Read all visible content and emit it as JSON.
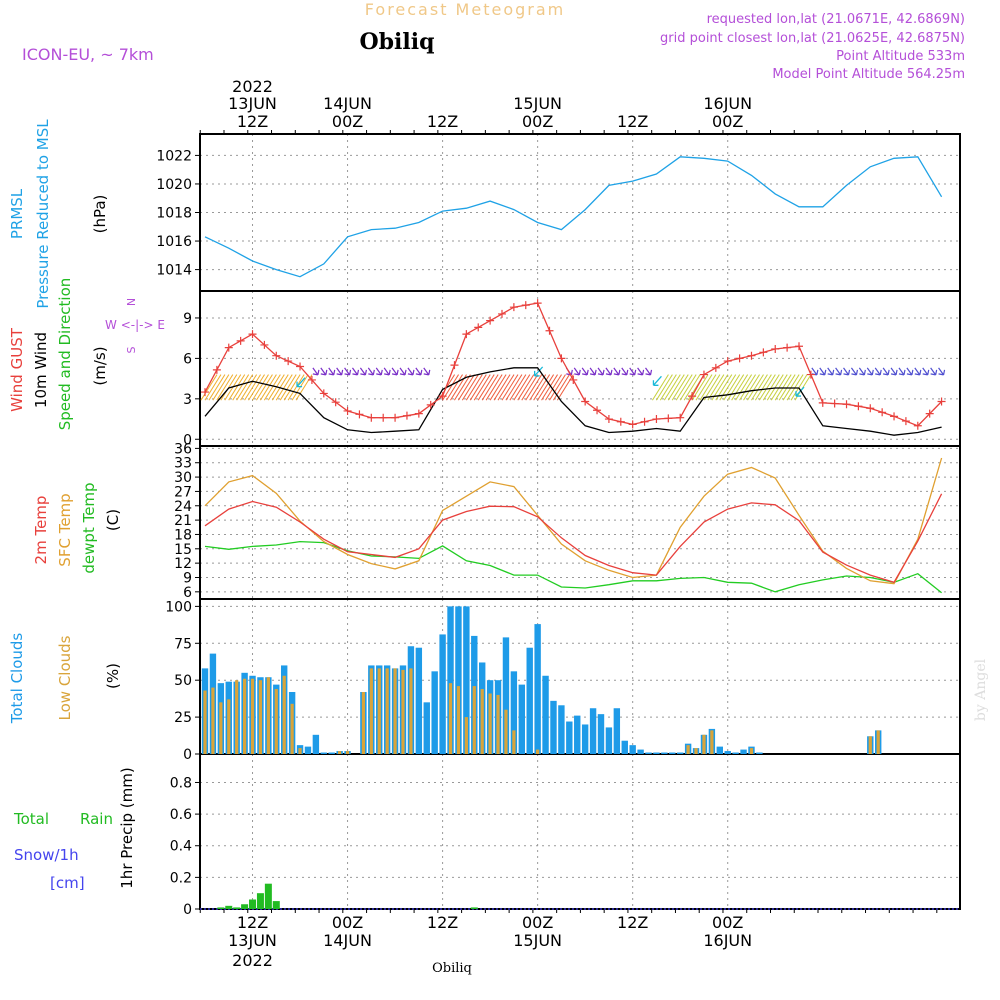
{
  "header": {
    "model": "ICON-EU, ~ 7km",
    "super_title": "Forecast Meteogram",
    "location": "Obiliq",
    "requested": "requested lon,lat (21.0671E, 42.6869N)",
    "grid_point": "grid point closest lon,lat (21.0625E, 42.6875N)",
    "point_altitude": "Point Altitude 533m",
    "model_altitude": "Model Point Altitude 564.25m",
    "watermark": "by Angel",
    "footer_location": "Obiliq"
  },
  "time_axis": {
    "top": [
      {
        "line1": "2022",
        "line2": "13JUN",
        "line3": "12Z"
      },
      {
        "line1": "",
        "line2": "14JUN",
        "line3": "00Z"
      },
      {
        "line1": "",
        "line2": "",
        "line3": "12Z"
      },
      {
        "line1": "",
        "line2": "15JUN",
        "line3": "00Z"
      },
      {
        "line1": "",
        "line2": "",
        "line3": "12Z"
      },
      {
        "line1": "",
        "line2": "16JUN",
        "line3": "00Z"
      }
    ],
    "bottom": [
      {
        "line1": "12Z",
        "line2": "13JUN",
        "line3": "2022"
      },
      {
        "line1": "00Z",
        "line2": "14JUN",
        "line3": ""
      },
      {
        "line1": "12Z",
        "line2": "",
        "line3": ""
      },
      {
        "line1": "00Z",
        "line2": "15JUN",
        "line3": ""
      },
      {
        "line1": "12Z",
        "line2": "",
        "line3": ""
      },
      {
        "line1": "00Z",
        "line2": "16JUN",
        "line3": ""
      }
    ]
  },
  "colors": {
    "pressure": "#1fa2e6",
    "gust": "#e8403c",
    "wind": "#000000",
    "t2m": "#e8403c",
    "sfc": "#e0a030",
    "dew": "#22cc22",
    "total_cloud": "#1e9be8",
    "low_cloud": "#d9a43a",
    "rain": "#22bb22",
    "snow": "#4444ee",
    "purple": "#b44fd8",
    "title_orange": "#f0c888"
  },
  "panels": {
    "pressure": {
      "label1": "PRMSL",
      "label2": "Pressure Reduced to MSL",
      "unit": "(hPa)"
    },
    "wind": {
      "label1": "Wind GUST",
      "label2": "10m Wind",
      "label3": "Speed and Direction",
      "unit": "(m/s)",
      "compass_n": "N",
      "compass_s": "S",
      "compass_we": "W <-|-> E"
    },
    "temp": {
      "label1": "2m Temp",
      "label2": "SFC Temp",
      "label3": "dewpt Temp",
      "unit": "(C)"
    },
    "cloud": {
      "label1": "Total Clouds",
      "label2": "Low Clouds",
      "unit": "(%)"
    },
    "precip": {
      "label1": "Total",
      "label1b": "Rain",
      "label2": "Snow/1h",
      "label3": "[cm]",
      "unit": "1hr Precip (mm)"
    }
  },
  "chart_data": [
    {
      "type": "line",
      "title": "PRMSL Pressure Reduced to MSL",
      "ylabel": "(hPa)",
      "ylim": [
        1012.5,
        1023.5
      ],
      "yticks": [
        1014,
        1016,
        1018,
        1020,
        1022
      ],
      "x_hours": [
        0,
        3,
        6,
        9,
        12,
        15,
        18,
        21,
        24,
        27,
        30,
        33,
        36,
        39,
        42,
        45,
        48,
        51,
        54,
        57,
        60,
        63,
        66,
        69,
        72,
        75,
        78,
        81,
        84,
        87,
        90,
        93
      ],
      "series": [
        {
          "name": "PRMSL",
          "values": [
            1016.3,
            1015.5,
            1014.6,
            1014.0,
            1013.5,
            1014.4,
            1016.3,
            1016.8,
            1016.9,
            1017.3,
            1018.1,
            1018.3,
            1018.8,
            1018.2,
            1017.3,
            1016.8,
            1018.2,
            1019.9,
            1020.2,
            1020.7,
            1021.9,
            1021.8,
            1021.6,
            1020.6,
            1019.3,
            1018.4,
            1018.4,
            1019.9,
            1021.2,
            1021.8,
            1021.9,
            1019.1
          ]
        }
      ]
    },
    {
      "type": "line",
      "title": "Wind GUST / 10m Wind",
      "ylabel": "(m/s)",
      "ylim": [
        -0.5,
        11
      ],
      "yticks": [
        0,
        3,
        6,
        9
      ],
      "x_hours": [
        0,
        3,
        6,
        9,
        12,
        15,
        18,
        21,
        24,
        27,
        30,
        33,
        36,
        39,
        42,
        45,
        48,
        51,
        54,
        57,
        60,
        63,
        66,
        69,
        72,
        75,
        78,
        81,
        84,
        87,
        90,
        93
      ],
      "series": [
        {
          "name": "Wind GUST",
          "values": [
            3.5,
            6.8,
            7.8,
            6.2,
            5.4,
            3.4,
            2.1,
            1.6,
            1.6,
            1.9,
            3.2,
            7.8,
            8.8,
            9.8,
            10.1,
            6.0,
            2.8,
            1.5,
            1.1,
            1.5,
            1.6,
            4.8,
            5.8,
            6.2,
            6.7,
            6.9,
            2.7,
            2.6,
            2.3,
            1.7,
            1.0,
            2.8
          ]
        },
        {
          "name": "10m Wind",
          "values": [
            1.7,
            3.8,
            4.3,
            3.9,
            3.4,
            1.6,
            0.7,
            0.5,
            0.6,
            0.7,
            3.7,
            4.6,
            5.0,
            5.3,
            5.3,
            2.8,
            1.0,
            0.5,
            0.6,
            0.8,
            0.6,
            3.1,
            3.3,
            3.6,
            3.8,
            3.8,
            1.0,
            0.8,
            0.6,
            0.3,
            0.5,
            0.9
          ]
        }
      ]
    },
    {
      "type": "line",
      "title": "2m Temp / SFC Temp / dewpt Temp",
      "ylabel": "(C)",
      "ylim": [
        4.5,
        36.5
      ],
      "yticks": [
        6,
        9,
        12,
        15,
        18,
        21,
        24,
        27,
        30,
        33,
        36
      ],
      "x_hours": [
        0,
        3,
        6,
        9,
        12,
        15,
        18,
        21,
        24,
        27,
        30,
        33,
        36,
        39,
        42,
        45,
        48,
        51,
        54,
        57,
        60,
        63,
        66,
        69,
        72,
        75,
        78,
        81,
        84,
        87,
        90,
        93
      ],
      "series": [
        {
          "name": "2m Temp",
          "values": [
            19.8,
            23.3,
            24.9,
            23.7,
            20.6,
            17.0,
            14.4,
            13.8,
            13.2,
            15.0,
            21.0,
            22.8,
            23.9,
            23.8,
            21.7,
            17.3,
            13.6,
            11.5,
            10.0,
            9.5,
            15.5,
            20.6,
            23.3,
            24.6,
            24.2,
            20.9,
            14.3,
            11.6,
            9.5,
            8.0,
            16.6,
            26.5
          ]
        },
        {
          "name": "SFC Temp",
          "values": [
            24.0,
            29.0,
            30.3,
            26.6,
            20.8,
            16.5,
            13.8,
            11.9,
            10.8,
            12.5,
            23.0,
            26.0,
            29.0,
            28.0,
            22.0,
            16.0,
            12.5,
            10.5,
            9.0,
            9.5,
            19.5,
            26.0,
            30.6,
            32.0,
            29.8,
            22.0,
            14.5,
            10.9,
            8.3,
            7.7,
            17.0,
            34.0
          ]
        },
        {
          "name": "dewpt Temp",
          "values": [
            15.5,
            14.9,
            15.5,
            15.8,
            16.5,
            16.3,
            14.6,
            13.5,
            13.3,
            13.0,
            15.6,
            12.5,
            11.5,
            9.5,
            9.5,
            7.0,
            6.8,
            7.5,
            8.3,
            8.3,
            8.8,
            9.0,
            8.0,
            7.8,
            6.0,
            7.5,
            8.5,
            9.3,
            9.0,
            8.0,
            9.8,
            5.8
          ]
        }
      ]
    },
    {
      "type": "bar",
      "title": "Total Clouds / Low Clouds",
      "ylabel": "(%)",
      "ylim": [
        0,
        105
      ],
      "yticks": [
        0,
        25,
        50,
        75,
        100
      ],
      "x_hours": [
        0,
        1,
        2,
        3,
        4,
        5,
        6,
        7,
        8,
        9,
        10,
        11,
        12,
        13,
        14,
        15,
        16,
        17,
        18,
        19,
        20,
        21,
        22,
        23,
        24,
        25,
        26,
        27,
        28,
        29,
        30,
        31,
        32,
        33,
        34,
        35,
        36,
        37,
        38,
        39,
        40,
        41,
        42,
        43,
        44,
        45,
        46,
        47,
        48,
        49,
        50,
        51,
        52,
        53,
        54,
        55,
        56,
        57,
        58,
        59,
        60,
        61,
        62,
        63,
        64,
        65,
        66,
        67,
        68,
        69,
        70,
        71,
        72,
        73,
        74,
        75,
        76,
        77,
        78,
        79,
        80,
        81,
        82,
        83,
        84,
        85,
        86,
        87,
        88,
        89,
        90,
        91,
        92,
        93
      ],
      "series": [
        {
          "name": "Total Clouds",
          "values": [
            58,
            68,
            48,
            49,
            49,
            55,
            53,
            52,
            52,
            47,
            60,
            42,
            6,
            5,
            13,
            1,
            1,
            2,
            2,
            0,
            42,
            60,
            60,
            60,
            58,
            60,
            73,
            72,
            35,
            56,
            81,
            100,
            100,
            100,
            80,
            62,
            50,
            50,
            79,
            56,
            47,
            72,
            88,
            53,
            36,
            33,
            22,
            26,
            20,
            31,
            27,
            18,
            31,
            9,
            6,
            3,
            1,
            1,
            1,
            1,
            1,
            7,
            4,
            13,
            17,
            5,
            2,
            1,
            3,
            5,
            1,
            0,
            0,
            0,
            0,
            0,
            0,
            0,
            0,
            0,
            0,
            0,
            0,
            0,
            12,
            16,
            0,
            0,
            0,
            0,
            0,
            0,
            0,
            0
          ]
        },
        {
          "name": "Low Clouds",
          "values": [
            43,
            45,
            35,
            37,
            50,
            51,
            51,
            50,
            52,
            44,
            53,
            34,
            4,
            0,
            0,
            0,
            0,
            2,
            2,
            0,
            42,
            58,
            58,
            58,
            58,
            57,
            58,
            0,
            0,
            0,
            0,
            48,
            46,
            25,
            46,
            44,
            41,
            40,
            30,
            16,
            0,
            0,
            3,
            0,
            0,
            0,
            0,
            0,
            0,
            0,
            0,
            0,
            0,
            0,
            0,
            0,
            0,
            0,
            0,
            0,
            0,
            6,
            4,
            13,
            16,
            0,
            0,
            0,
            0,
            4,
            0,
            0,
            0,
            0,
            0,
            0,
            0,
            0,
            0,
            0,
            0,
            0,
            0,
            0,
            12,
            16,
            0,
            0,
            0,
            0,
            0,
            0,
            0,
            0
          ]
        }
      ]
    },
    {
      "type": "bar",
      "title": "1hr Precip",
      "ylabel": "1hr Precip (mm)",
      "ylim": [
        0,
        0.98
      ],
      "yticks": [
        0,
        0.2,
        0.4,
        0.6,
        0.8
      ],
      "series": [
        {
          "name": "Total Rain",
          "x_hours": [
            2,
            3,
            4,
            5,
            6,
            7,
            8,
            9,
            34
          ],
          "values": [
            0.01,
            0.02,
            0.01,
            0.03,
            0.06,
            0.1,
            0.16,
            0.05,
            0.01
          ]
        }
      ]
    }
  ]
}
